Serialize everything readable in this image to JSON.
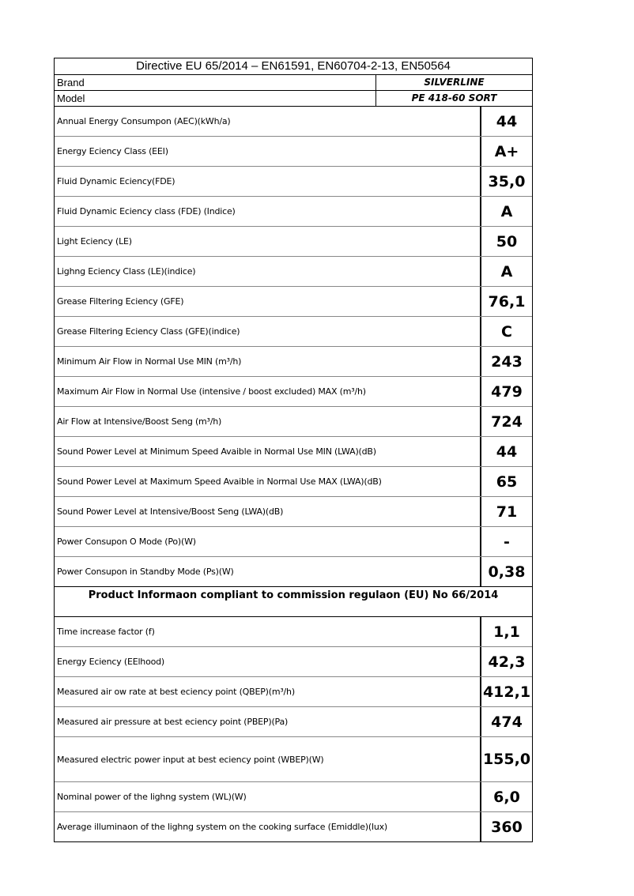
{
  "header": {
    "title": "Directive EU 65/2014 – EN61591, EN60704-2-13, EN50564",
    "brand_label": "Brand",
    "brand_value": "SILVERLINE",
    "model_label": "Model",
    "model_value": "PE 418-60 SORT"
  },
  "rows": [
    {
      "label": "Annual Energy Consumpon (AEC)(kWh/a)",
      "value": "44"
    },
    {
      "label": "Energy Eciency Class (EEI)",
      "value": "A+"
    },
    {
      "label": "Fluid Dynamic Eciency(FDE)",
      "value": "35,0"
    },
    {
      "label": "Fluid Dynamic Eciency class (FDE) (Indice)",
      "value": "A"
    },
    {
      "label": "Light Eciency (LE)",
      "value": "50"
    },
    {
      "label": "Lighng Eciency Class (LE)(indice)",
      "value": "A"
    },
    {
      "label": "Grease Filtering Eciency (GFE)",
      "value": "76,1"
    },
    {
      "label": "Grease Filtering Eciency Class (GFE)(indice)",
      "value": "C"
    },
    {
      "label": "Minimum Air Flow in Normal Use MIN (m³/h)",
      "value": "243"
    },
    {
      "label": "Maximum Air Flow in Normal Use  (intensive / boost excluded) MAX (m³/h)",
      "value": "479"
    },
    {
      "label": "Air Flow at Intensive/Boost Seng (m³/h)",
      "value": "724"
    },
    {
      "label": "Sound Power Level at Minimum Speed Avaible in Normal Use MIN (LWA)(dB)",
      "value": "44"
    },
    {
      "label": "Sound Power Level at Maximum Speed Avaible in Normal Use MAX (LWA)(dB)",
      "value": "65"
    },
    {
      "label": "Sound Power Level at Intensive/Boost Seng (LWA)(dB)",
      "value": "71"
    },
    {
      "label": "Power Consupon O Mode  (Po)(W)",
      "value": "-"
    },
    {
      "label": "Power Consupon in Standby Mode (Ps)(W)",
      "value": "0,38"
    }
  ],
  "section_title": "Product Informaon compliant to commission regulaon (EU) No 66/2014",
  "rows2": [
    {
      "label": "Time increase factor (f)",
      "value": "1,1"
    },
    {
      "label": "Energy Eciency (EElhood)",
      "value": "42,3"
    },
    {
      "label": "Measured air ow rate at best eciency point (QBEP)(m³/h)",
      "value": "412,1"
    },
    {
      "label": "Measured air pressure at best eciency point (PBEP)(Pa)",
      "value": "474"
    },
    {
      "label": "Measured electric power input at best eciency point (WBEP)(W)",
      "value": "155,0"
    },
    {
      "label": "Nominal power of the lighng system (WL)(W)",
      "value": "6,0"
    },
    {
      "label": "Average illuminaon of the lighng system on the cooking surface (Emiddle)(lux)",
      "value": "360"
    }
  ]
}
